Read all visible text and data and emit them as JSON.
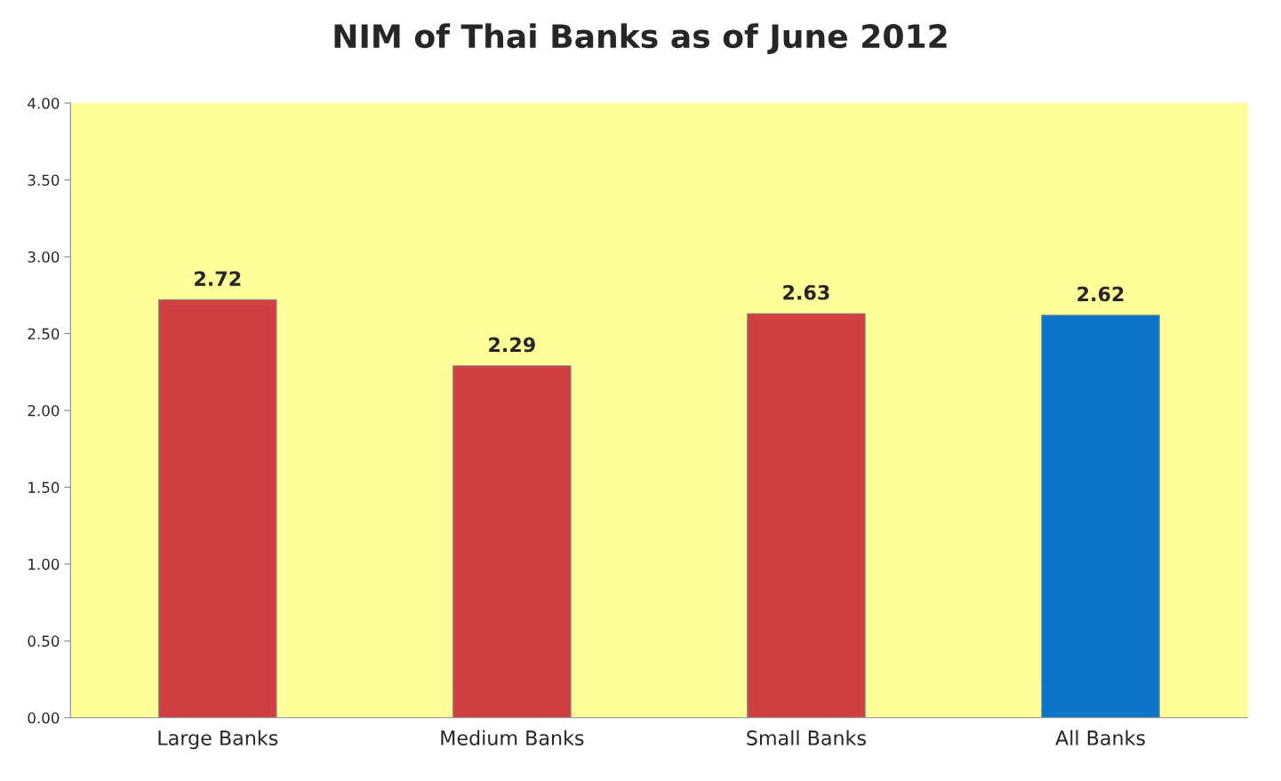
{
  "chart_data": {
    "type": "bar",
    "title": "NIM of Thai Banks as of June 2012",
    "categories": [
      "Large Banks",
      "Medium Banks",
      "Small Banks",
      "All Banks"
    ],
    "values": [
      2.72,
      2.29,
      2.63,
      2.62
    ],
    "colors": [
      "#d04040",
      "#d04040",
      "#d04040",
      "#0a74c8"
    ],
    "ylim": [
      0,
      4
    ],
    "yticks": [
      {
        "value": 0,
        "label": "0.00"
      },
      {
        "value": 0.5,
        "label": "0.50"
      },
      {
        "value": 1,
        "label": "1.00"
      },
      {
        "value": 1.5,
        "label": "1.50"
      },
      {
        "value": 2,
        "label": "2.00"
      },
      {
        "value": 2.5,
        "label": "2.50"
      },
      {
        "value": 3,
        "label": "3.00"
      },
      {
        "value": 3.5,
        "label": "3.50"
      },
      {
        "value": 4,
        "label": "4.00"
      }
    ],
    "data_labels": true,
    "grid": false,
    "legend": false
  }
}
